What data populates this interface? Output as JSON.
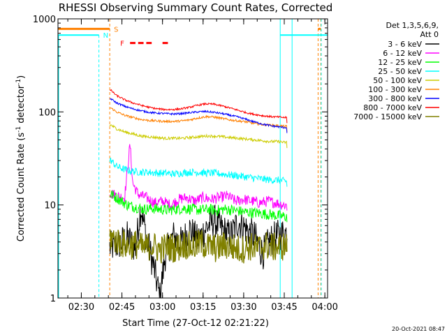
{
  "chart_data": {
    "type": "line",
    "title": "RHESSI Observing Summary Count Rates, Corrected",
    "xlabel": "Start Time (27-Oct-12 02:21:22)",
    "ylabel": "Corrected Count Rate (s⁻¹ detector⁻¹)",
    "x_unit": "minutes",
    "xlim": [
      "02:21:22",
      "04:01:00"
    ],
    "x_ticks": [
      "02:30",
      "02:45",
      "03:00",
      "03:15",
      "03:30",
      "03:45",
      "04:00"
    ],
    "y_scale": "log",
    "ylim": [
      1,
      1000
    ],
    "y_ticks": [
      "1",
      "10",
      "100",
      "1000"
    ],
    "legend_header": [
      "Det 1,3,5,6,9,",
      "Att 0"
    ],
    "legend_position": "right",
    "footer_timestamp": "20-Oct-2021 08:47",
    "flag_labels": {
      "saa": "S",
      "night": "N",
      "flare": "F"
    },
    "flag_levels": {
      "saa": 780,
      "night": 670,
      "flare_y": 550
    },
    "flare_segments": [
      [
        "02:48",
        "02:50"
      ],
      [
        "02:51",
        "02:53"
      ],
      [
        "02:54",
        "02:56"
      ],
      [
        "03:00",
        "03:02"
      ]
    ],
    "night_intervals": [
      [
        "02:21:22",
        "02:36:30"
      ],
      [
        "03:43:30",
        "04:01:00"
      ]
    ],
    "saa_intervals": [
      [
        "02:21:22",
        "02:40:30"
      ],
      [
        "03:57:30",
        "03:58:30"
      ]
    ],
    "data_start": "02:40:30",
    "data_end": "03:46:00",
    "series": [
      {
        "name": "3 - 6 keV",
        "color": "#000000",
        "points": [
          [
            "02:41",
            3.5
          ],
          [
            "02:44",
            3.8
          ],
          [
            "02:47",
            4.5
          ],
          [
            "02:50",
            3.4
          ],
          [
            "02:52",
            9.5
          ],
          [
            "02:54",
            4.6
          ],
          [
            "02:57",
            2.0
          ],
          [
            "02:59",
            1.0
          ],
          [
            "03:01",
            2.9
          ],
          [
            "03:04",
            4.6
          ],
          [
            "03:07",
            3.9
          ],
          [
            "03:10",
            5.5
          ],
          [
            "03:13",
            4.1
          ],
          [
            "03:16",
            5.6
          ],
          [
            "03:19",
            6.9
          ],
          [
            "03:22",
            5.5
          ],
          [
            "03:25",
            4.6
          ],
          [
            "03:28",
            6.6
          ],
          [
            "03:31",
            5.5
          ],
          [
            "03:34",
            4.6
          ],
          [
            "03:37",
            3.0
          ],
          [
            "03:40",
            4.2
          ],
          [
            "03:43",
            4.7
          ],
          [
            "03:45",
            5.0
          ]
        ]
      },
      {
        "name": "6 - 12 keV",
        "color": "#ff00ff",
        "points": [
          [
            "02:41",
            13.5
          ],
          [
            "02:43",
            12.5
          ],
          [
            "02:46",
            12
          ],
          [
            "02:48",
            45
          ],
          [
            "02:49",
            17
          ],
          [
            "02:51",
            13
          ],
          [
            "02:54",
            12
          ],
          [
            "02:57",
            10.5
          ],
          [
            "03:00",
            11
          ],
          [
            "03:03",
            10
          ],
          [
            "03:06",
            11.5
          ],
          [
            "03:09",
            12
          ],
          [
            "03:12",
            11
          ],
          [
            "03:15",
            12
          ],
          [
            "03:18",
            11.5
          ],
          [
            "03:21",
            12
          ],
          [
            "03:24",
            12.5
          ],
          [
            "03:27",
            11
          ],
          [
            "03:30",
            11.5
          ],
          [
            "03:33",
            11
          ],
          [
            "03:36",
            10.5
          ],
          [
            "03:39",
            11
          ],
          [
            "03:42",
            10.5
          ],
          [
            "03:45",
            10
          ]
        ]
      },
      {
        "name": "12 - 25 keV",
        "color": "#00ff00",
        "points": [
          [
            "02:41",
            13
          ],
          [
            "02:44",
            11.5
          ],
          [
            "02:47",
            10
          ],
          [
            "02:50",
            9.5
          ],
          [
            "02:53",
            9
          ],
          [
            "02:56",
            9.2
          ],
          [
            "02:59",
            9
          ],
          [
            "03:02",
            8.8
          ],
          [
            "03:05",
            9
          ],
          [
            "03:08",
            9.2
          ],
          [
            "03:11",
            9
          ],
          [
            "03:14",
            8.8
          ],
          [
            "03:17",
            9
          ],
          [
            "03:20",
            8.7
          ],
          [
            "03:23",
            9
          ],
          [
            "03:26",
            8.8
          ],
          [
            "03:29",
            8.5
          ],
          [
            "03:32",
            8.3
          ],
          [
            "03:35",
            8.2
          ],
          [
            "03:38",
            8
          ],
          [
            "03:41",
            7.8
          ],
          [
            "03:45",
            7.5
          ]
        ]
      },
      {
        "name": "25 - 50 keV",
        "color": "#00ffff",
        "points": [
          [
            "02:41",
            30
          ],
          [
            "02:43",
            26
          ],
          [
            "02:46",
            24
          ],
          [
            "02:49",
            23
          ],
          [
            "02:52",
            22.5
          ],
          [
            "02:55",
            22.5
          ],
          [
            "02:58",
            22
          ],
          [
            "03:01",
            22
          ],
          [
            "03:04",
            21.5
          ],
          [
            "03:07",
            22
          ],
          [
            "03:10",
            22.5
          ],
          [
            "03:13",
            22.5
          ],
          [
            "03:16",
            22
          ],
          [
            "03:19",
            22
          ],
          [
            "03:22",
            21.5
          ],
          [
            "03:25",
            21
          ],
          [
            "03:28",
            20.5
          ],
          [
            "03:31",
            20
          ],
          [
            "03:34",
            19.5
          ],
          [
            "03:37",
            19
          ],
          [
            "03:40",
            18.5
          ],
          [
            "03:43",
            18.5
          ],
          [
            "03:45",
            18
          ]
        ]
      },
      {
        "name": "50 - 100 keV",
        "color": "#cccc00",
        "points": [
          [
            "02:41",
            72
          ],
          [
            "02:43",
            66
          ],
          [
            "02:46",
            61
          ],
          [
            "02:49",
            58
          ],
          [
            "02:52",
            55
          ],
          [
            "02:55",
            54
          ],
          [
            "02:58",
            53
          ],
          [
            "03:01",
            52
          ],
          [
            "03:04",
            52
          ],
          [
            "03:07",
            52
          ],
          [
            "03:10",
            53
          ],
          [
            "03:13",
            54
          ],
          [
            "03:16",
            55
          ],
          [
            "03:19",
            55
          ],
          [
            "03:22",
            54
          ],
          [
            "03:25",
            53
          ],
          [
            "03:28",
            52
          ],
          [
            "03:31",
            51
          ],
          [
            "03:34",
            50
          ],
          [
            "03:37",
            49
          ],
          [
            "03:40",
            48
          ],
          [
            "03:43",
            48
          ],
          [
            "03:45",
            47
          ]
        ]
      },
      {
        "name": "100 - 300 keV",
        "color": "#ff8000",
        "points": [
          [
            "02:41",
            110
          ],
          [
            "02:43",
            100
          ],
          [
            "02:46",
            92
          ],
          [
            "02:49",
            87
          ],
          [
            "02:52",
            83
          ],
          [
            "02:55",
            81
          ],
          [
            "02:58",
            80
          ],
          [
            "03:01",
            79
          ],
          [
            "03:04",
            79
          ],
          [
            "03:07",
            80
          ],
          [
            "03:10",
            82
          ],
          [
            "03:13",
            86
          ],
          [
            "03:16",
            89
          ],
          [
            "03:19",
            88
          ],
          [
            "03:22",
            85
          ],
          [
            "03:25",
            82
          ],
          [
            "03:28",
            80
          ],
          [
            "03:31",
            78
          ],
          [
            "03:34",
            75
          ],
          [
            "03:37",
            73
          ],
          [
            "03:40",
            72
          ],
          [
            "03:43",
            71
          ],
          [
            "03:45",
            70
          ]
        ]
      },
      {
        "name": "300 - 800 keV",
        "color": "#0000ff",
        "points": [
          [
            "02:41",
            138
          ],
          [
            "02:43",
            125
          ],
          [
            "02:46",
            115
          ],
          [
            "02:49",
            108
          ],
          [
            "02:52",
            103
          ],
          [
            "02:55",
            99
          ],
          [
            "02:58",
            97
          ],
          [
            "03:01",
            96
          ],
          [
            "03:04",
            95
          ],
          [
            "03:07",
            96
          ],
          [
            "03:10",
            98
          ],
          [
            "03:13",
            100
          ],
          [
            "03:16",
            101
          ],
          [
            "03:19",
            99
          ],
          [
            "03:22",
            96
          ],
          [
            "03:25",
            92
          ],
          [
            "03:28",
            88
          ],
          [
            "03:31",
            83
          ],
          [
            "03:34",
            78
          ],
          [
            "03:37",
            74
          ],
          [
            "03:40",
            71
          ],
          [
            "03:43",
            69
          ],
          [
            "03:45",
            68
          ]
        ]
      },
      {
        "name": "800 - 7000 keV",
        "color": "#ff0000",
        "points": [
          [
            "02:41",
            170
          ],
          [
            "02:43",
            150
          ],
          [
            "02:46",
            135
          ],
          [
            "02:49",
            125
          ],
          [
            "02:52",
            118
          ],
          [
            "02:55",
            112
          ],
          [
            "02:58",
            108
          ],
          [
            "03:01",
            106
          ],
          [
            "03:04",
            106
          ],
          [
            "03:07",
            108
          ],
          [
            "03:10",
            112
          ],
          [
            "03:13",
            118
          ],
          [
            "03:16",
            122
          ],
          [
            "03:19",
            121
          ],
          [
            "03:22",
            116
          ],
          [
            "03:25",
            110
          ],
          [
            "03:28",
            104
          ],
          [
            "03:31",
            98
          ],
          [
            "03:34",
            94
          ],
          [
            "03:37",
            91
          ],
          [
            "03:40",
            89
          ],
          [
            "03:43",
            88
          ],
          [
            "03:45",
            87
          ]
        ]
      },
      {
        "name": "7000 - 15000 keV",
        "color": "#808000",
        "points": [
          [
            "02:41",
            4.5
          ],
          [
            "02:44",
            4.0
          ],
          [
            "02:47",
            3.6
          ],
          [
            "02:50",
            3.8
          ],
          [
            "02:53",
            3.4
          ],
          [
            "02:56",
            3.7
          ],
          [
            "02:59",
            3.3
          ],
          [
            "03:02",
            3.6
          ],
          [
            "03:05",
            3.4
          ],
          [
            "03:08",
            3.8
          ],
          [
            "03:11",
            3.5
          ],
          [
            "03:14",
            3.9
          ],
          [
            "03:17",
            3.6
          ],
          [
            "03:20",
            3.4
          ],
          [
            "03:23",
            3.7
          ],
          [
            "03:26",
            3.5
          ],
          [
            "03:29",
            3.3
          ],
          [
            "03:32",
            3.6
          ],
          [
            "03:35",
            3.4
          ],
          [
            "03:38",
            3.7
          ],
          [
            "03:41",
            3.5
          ],
          [
            "03:45",
            3.6
          ]
        ]
      }
    ]
  }
}
